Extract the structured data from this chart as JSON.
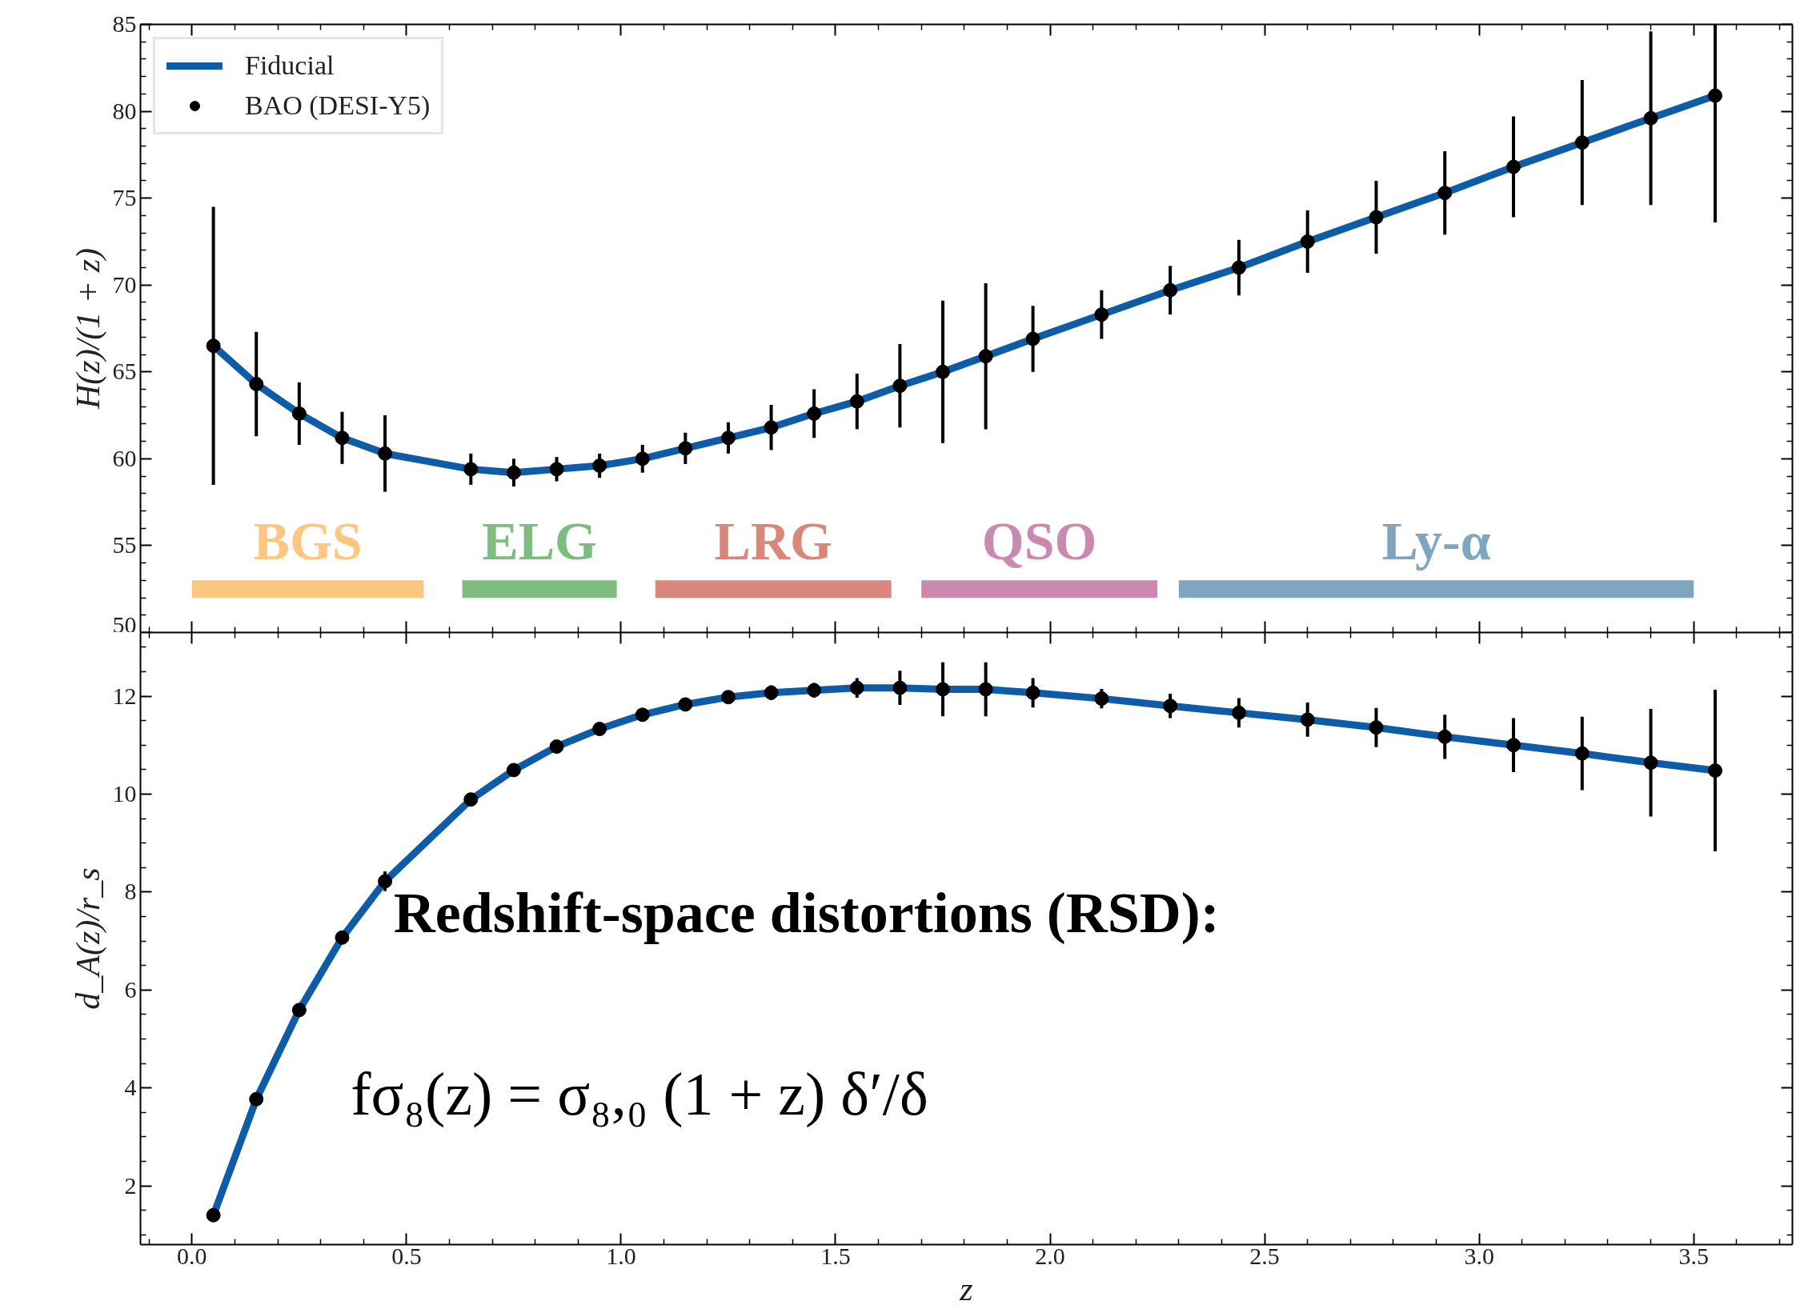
{
  "chart_data": [
    {
      "type": "line",
      "ylabel": "H(z)/(1 + z)",
      "xlim": [
        -0.12,
        3.73
      ],
      "ylim": [
        50,
        85
      ],
      "xticks": [
        0,
        0.5,
        1,
        1.5,
        2,
        2.5,
        3,
        3.5
      ],
      "yticks": [
        50,
        55,
        60,
        65,
        70,
        75,
        80,
        85
      ],
      "tick_labels": "y",
      "grid": false,
      "legend": "top left",
      "annotations": [
        {
          "text": "BGS",
          "x": 0.27,
          "y": 52.5
        },
        {
          "text": "ELG",
          "x": 0.81,
          "y": 52.5
        },
        {
          "text": "LRG",
          "x": 1.355,
          "y": 52.5
        },
        {
          "text": "QSO",
          "x": 1.975,
          "y": 52.5
        },
        {
          "text": "Ly-α",
          "x": 2.9,
          "y": 52.5
        }
      ],
      "series": [
        {
          "name": "Fiducial",
          "color": "#0e5ca8",
          "marker": "none",
          "x": [
            0.05,
            0.15,
            0.25,
            0.35,
            0.45,
            0.65,
            0.75,
            0.85,
            0.95,
            1.05,
            1.15,
            1.25,
            1.35,
            1.45,
            1.55,
            1.65,
            1.75,
            1.85,
            1.96,
            2.12,
            2.28,
            2.44,
            2.6,
            2.76,
            2.92,
            3.08,
            3.24,
            3.4,
            3.55
          ],
          "values": [
            66.5,
            64.3,
            62.6,
            61.2,
            60.3,
            59.4,
            59.2,
            59.4,
            59.6,
            60.0,
            60.6,
            61.2,
            61.8,
            62.6,
            63.3,
            64.2,
            65.0,
            65.9,
            66.9,
            68.3,
            69.7,
            71.0,
            72.5,
            73.9,
            75.3,
            76.8,
            78.2,
            79.6,
            80.9
          ]
        },
        {
          "name": "BAO (DESI-Y5)",
          "type": "scatter",
          "color": "#000000",
          "marker": "circle",
          "x": [
            0.05,
            0.15,
            0.25,
            0.35,
            0.45,
            0.65,
            0.75,
            0.85,
            0.95,
            1.05,
            1.15,
            1.25,
            1.35,
            1.45,
            1.55,
            1.65,
            1.75,
            1.85,
            1.96,
            2.12,
            2.28,
            2.44,
            2.6,
            2.76,
            2.92,
            3.08,
            3.24,
            3.4,
            3.55
          ],
          "values": [
            66.5,
            64.3,
            62.6,
            61.2,
            60.3,
            59.4,
            59.2,
            59.4,
            59.6,
            60.0,
            60.6,
            61.2,
            61.8,
            62.6,
            63.3,
            64.2,
            65.0,
            65.9,
            66.9,
            68.3,
            69.7,
            71.0,
            72.5,
            73.9,
            75.3,
            76.8,
            78.2,
            79.6,
            80.9
          ],
          "errors": [
            8.0,
            3.0,
            1.8,
            1.5,
            2.2,
            0.9,
            0.8,
            0.7,
            0.7,
            0.8,
            0.9,
            0.9,
            1.3,
            1.4,
            1.6,
            2.4,
            4.1,
            4.2,
            1.9,
            1.4,
            1.4,
            1.6,
            1.8,
            2.1,
            2.4,
            2.9,
            3.6,
            5.0,
            [
              73.6,
              85.0
            ]
          ]
        },
        {
          "color": "#fec77f",
          "marker": "none",
          "x": [
            0.0,
            0.54
          ],
          "values": [
            52.5,
            52.5
          ]
        },
        {
          "color": "#7fbc7f",
          "marker": "none",
          "x": [
            0.63,
            0.99
          ],
          "values": [
            52.5,
            52.5
          ]
        },
        {
          "color": "#d9877b",
          "marker": "none",
          "x": [
            1.08,
            1.63
          ],
          "values": [
            52.5,
            52.5
          ]
        },
        {
          "color": "#cc89b0",
          "marker": "none",
          "x": [
            1.7,
            2.25
          ],
          "values": [
            52.5,
            52.5
          ]
        },
        {
          "color": "#7fa6c1",
          "marker": "none",
          "x": [
            2.3,
            3.5
          ],
          "values": [
            52.5,
            52.5
          ]
        }
      ]
    },
    {
      "type": "line",
      "xlabel": "z",
      "ylabel": "d_A(z)/r_s",
      "xlim": [
        -0.12,
        3.73
      ],
      "ylim": [
        0.8,
        13.3
      ],
      "xticks": [
        {
          "value": 0,
          "label": "0.0"
        },
        0.5,
        {
          "value": 1,
          "label": "1.0"
        },
        1.5,
        {
          "value": 2,
          "label": "2.0"
        },
        2.5,
        {
          "value": 3,
          "label": "3.0"
        },
        3.5
      ],
      "yticks": [
        2,
        4,
        6,
        8,
        10,
        12
      ],
      "grid": false,
      "annotations": [
        "Redshift-space distortions (RSD):",
        "fσ₈(z) = σ₈,₀ (1 + z) δ′/δ"
      ],
      "series": [
        {
          "color": "#0e5ca8",
          "marker": "none",
          "x": [
            0.05,
            0.15,
            0.25,
            0.35,
            0.45,
            0.65,
            0.75,
            0.85,
            0.95,
            1.05,
            1.15,
            1.25,
            1.35,
            1.45,
            1.55,
            1.65,
            1.75,
            1.85,
            1.96,
            2.12,
            2.28,
            2.44,
            2.6,
            2.76,
            2.92,
            3.08,
            3.24,
            3.4,
            3.55
          ],
          "values": [
            1.4,
            3.77,
            5.59,
            7.07,
            8.22,
            9.89,
            10.49,
            10.97,
            11.33,
            11.62,
            11.83,
            11.98,
            12.07,
            12.12,
            12.17,
            12.17,
            12.14,
            12.14,
            12.07,
            11.95,
            11.8,
            11.66,
            11.52,
            11.36,
            11.17,
            11.0,
            10.83,
            10.64,
            10.48
          ]
        },
        {
          "type": "scatter",
          "color": "#000000",
          "marker": "circle",
          "x": [
            0.05,
            0.15,
            0.25,
            0.35,
            0.45,
            0.65,
            0.75,
            0.85,
            0.95,
            1.05,
            1.15,
            1.25,
            1.35,
            1.45,
            1.55,
            1.65,
            1.75,
            1.85,
            1.96,
            2.12,
            2.28,
            2.44,
            2.6,
            2.76,
            2.92,
            3.08,
            3.24,
            3.4,
            3.55
          ],
          "values": [
            1.4,
            3.77,
            5.59,
            7.07,
            8.22,
            9.89,
            10.49,
            10.97,
            11.33,
            11.62,
            11.83,
            11.98,
            12.07,
            12.12,
            12.17,
            12.17,
            12.14,
            12.14,
            12.07,
            11.95,
            11.8,
            11.66,
            11.52,
            11.36,
            11.17,
            11.0,
            10.83,
            10.64,
            10.48
          ],
          "errors": [
            null,
            null,
            null,
            null,
            0.2,
            null,
            null,
            null,
            null,
            null,
            null,
            null,
            0.15,
            0.15,
            0.2,
            0.35,
            0.55,
            0.55,
            0.3,
            0.2,
            0.25,
            0.3,
            0.35,
            0.4,
            0.45,
            0.55,
            0.75,
            1.1,
            1.65
          ]
        }
      ]
    }
  ]
}
